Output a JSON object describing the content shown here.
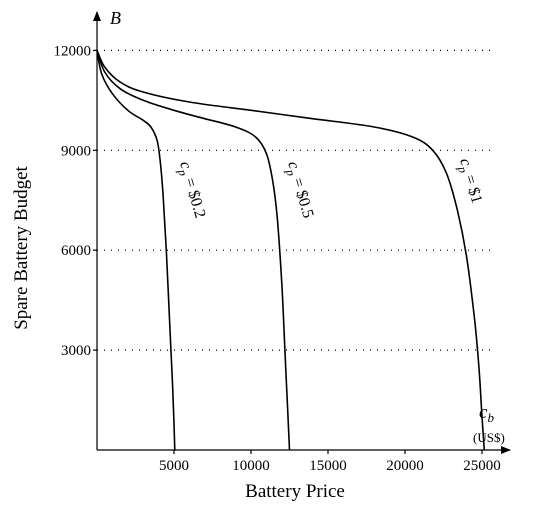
{
  "chart_data": {
    "type": "line",
    "xlabel": "Battery Price",
    "ylabel": "Spare Battery Budget",
    "x_axis_symbol": "c",
    "x_axis_symbol_sub": "b",
    "x_axis_unit": "(US$)",
    "y_axis_symbol": "B",
    "xlim": [
      0,
      27500
    ],
    "ylim": [
      0,
      12000
    ],
    "x_ticks": [
      5000,
      10000,
      15000,
      20000,
      25000
    ],
    "y_ticks": [
      3000,
      6000,
      9000,
      12000
    ],
    "grid": "horizontal dotted",
    "series": [
      {
        "label_prefix": "c",
        "label_sub": "p",
        "label_rest": " = $0.2",
        "x": [
          0,
          300,
          1000,
          2000,
          3000,
          3500,
          3900,
          4100,
          4300,
          4500,
          4700,
          4900,
          5000,
          5050
        ],
        "y": [
          12000,
          11300,
          10700,
          10200,
          9900,
          9700,
          9300,
          8700,
          7600,
          6000,
          4000,
          2000,
          800,
          0
        ]
      },
      {
        "label_prefix": "c",
        "label_sub": "p",
        "label_rest": " = $0.5",
        "x": [
          0,
          500,
          1500,
          3000,
          5000,
          7000,
          9000,
          10300,
          11000,
          11400,
          11700,
          12000,
          12200,
          12400,
          12500
        ],
        "y": [
          12000,
          11350,
          10850,
          10500,
          10200,
          9950,
          9700,
          9400,
          8900,
          8100,
          7000,
          5000,
          3000,
          1000,
          0
        ]
      },
      {
        "label_prefix": "c",
        "label_sub": "p",
        "label_rest": " = $1",
        "x": [
          0,
          500,
          1500,
          3000,
          6000,
          10000,
          14000,
          18000,
          20500,
          21800,
          22700,
          23400,
          24000,
          24500,
          24800,
          25000,
          25150
        ],
        "y": [
          12000,
          11500,
          11050,
          10750,
          10450,
          10200,
          9950,
          9700,
          9400,
          9000,
          8300,
          7200,
          5800,
          4000,
          2500,
          1000,
          0
        ]
      }
    ]
  }
}
